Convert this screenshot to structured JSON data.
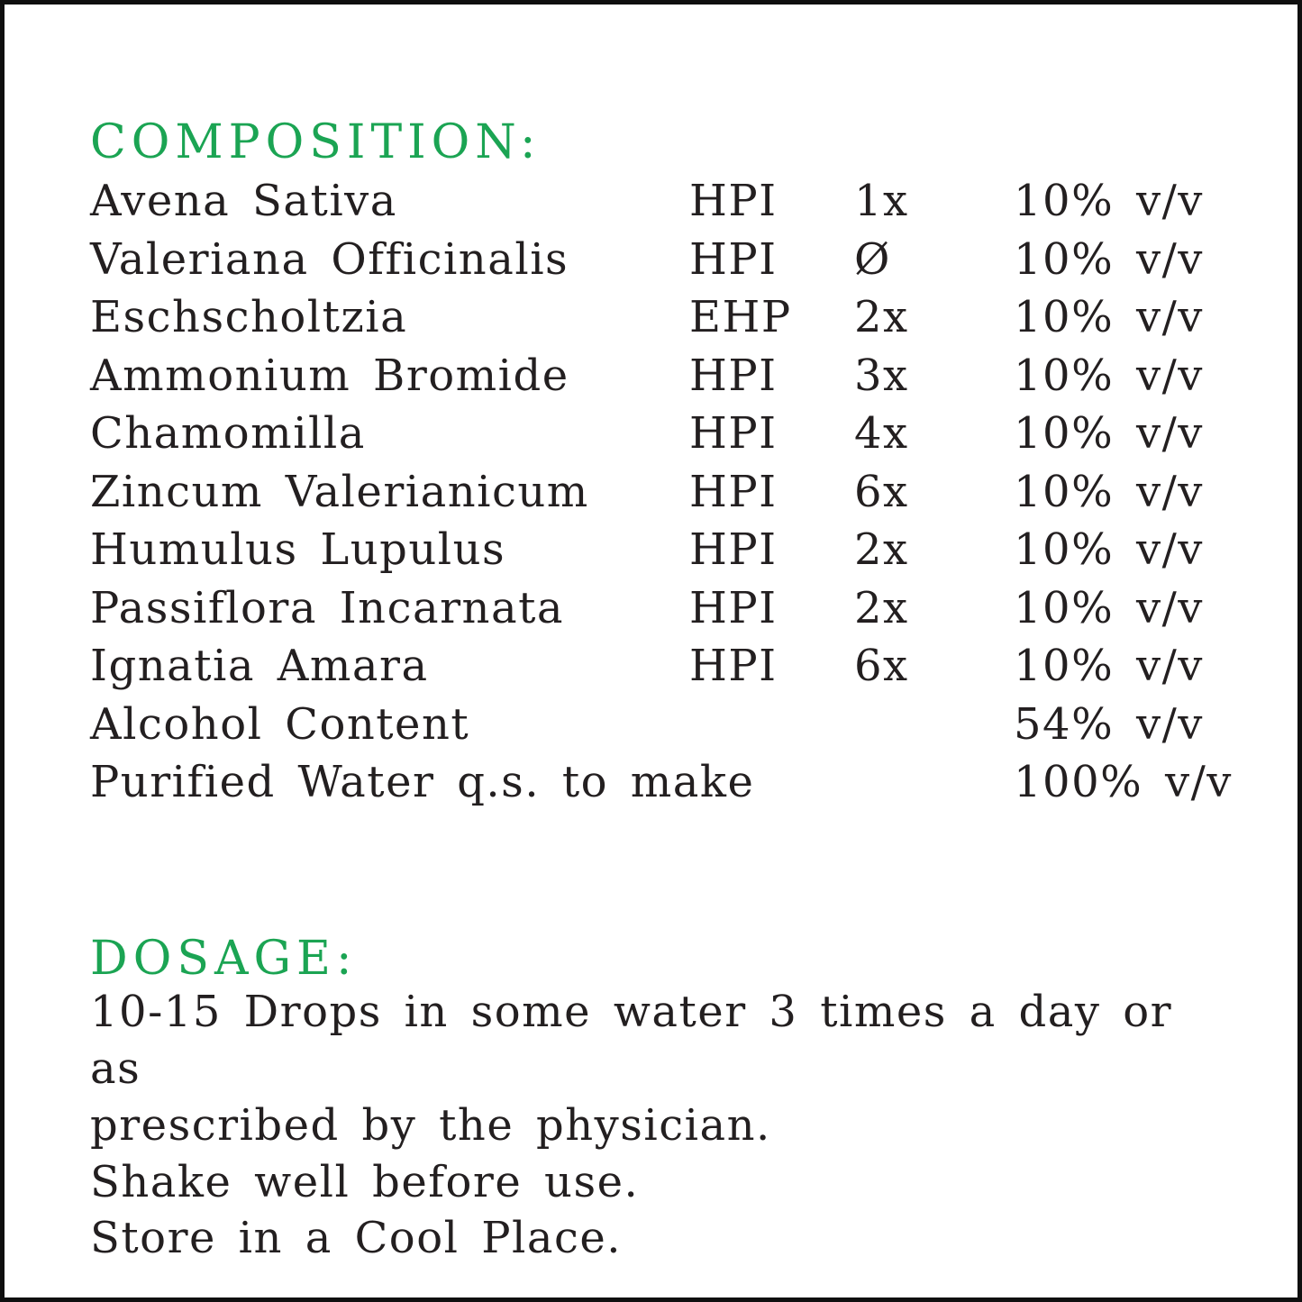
{
  "colors": {
    "heading_green": "#1BA453",
    "text_ink": "#231F20",
    "frame_border": "#0F0F0F",
    "background": "#FFFFFF"
  },
  "composition": {
    "heading": "COMPOSITION:",
    "rows": [
      {
        "name": "Avena Sativa",
        "std": "HPI",
        "potency": "1x",
        "percent": "10% v/v"
      },
      {
        "name": "Valeriana Officinalis",
        "std": "HPI",
        "potency": "Ø",
        "percent": "10% v/v"
      },
      {
        "name": "Eschscholtzia",
        "std": "EHP",
        "potency": "2x",
        "percent": "10% v/v"
      },
      {
        "name": "Ammonium Bromide",
        "std": "HPI",
        "potency": "3x",
        "percent": "10% v/v"
      },
      {
        "name": "Chamomilla",
        "std": "HPI",
        "potency": "4x",
        "percent": "10% v/v"
      },
      {
        "name": "Zincum Valerianicum",
        "std": "HPI",
        "potency": "6x",
        "percent": "10% v/v"
      },
      {
        "name": "Humulus Lupulus",
        "std": "HPI",
        "potency": "2x",
        "percent": "10% v/v"
      },
      {
        "name": "Passiflora Incarnata",
        "std": "HPI",
        "potency": "2x",
        "percent": "10% v/v"
      },
      {
        "name": "Ignatia Amara",
        "std": "HPI",
        "potency": "6x",
        "percent": "10% v/v"
      },
      {
        "name": "Alcohol Content",
        "std": "",
        "potency": "",
        "percent": "54% v/v"
      },
      {
        "name": "Purified Water q.s. to make",
        "std": "",
        "potency": "",
        "percent": "100% v/v"
      }
    ]
  },
  "dosage": {
    "heading": "DOSAGE:",
    "line1": "10-15 Drops in some water 3 times a day or as",
    "line2": "prescribed by the physician.",
    "shake": "Shake well before use.",
    "store": "Store in a Cool Place."
  }
}
